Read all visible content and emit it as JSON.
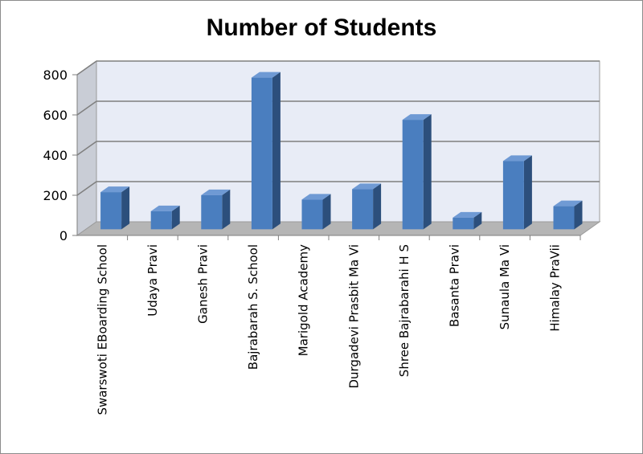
{
  "chart_data": {
    "type": "bar",
    "title": "Number of Students",
    "xlabel": "",
    "ylabel": "",
    "ylim": [
      0,
      800
    ],
    "yticks": [
      0,
      200,
      400,
      600,
      800
    ],
    "grid": true,
    "legend": "none",
    "categories": [
      "Swarswoti EBoarding School",
      "Udaya Pravi",
      "Ganesh Pravi",
      "Bajrabarah S. School",
      "Marigold Academy",
      "Durgadevi Prasbit Ma Vi",
      "Shree Bajrabarahi H S",
      "Basanta Pravi",
      "Sunaula Ma Vi",
      "Himalay PraVii"
    ],
    "values": [
      185,
      90,
      170,
      755,
      148,
      200,
      545,
      58,
      340,
      115
    ],
    "colors": {
      "bar_front": "#4a7ebf",
      "bar_side": "#2c4f7c",
      "bar_top": "#6f9ad4",
      "back_wall": "#e8ecf6",
      "floor": "#b5b5b5",
      "gridline": "#7f7f7f"
    }
  }
}
